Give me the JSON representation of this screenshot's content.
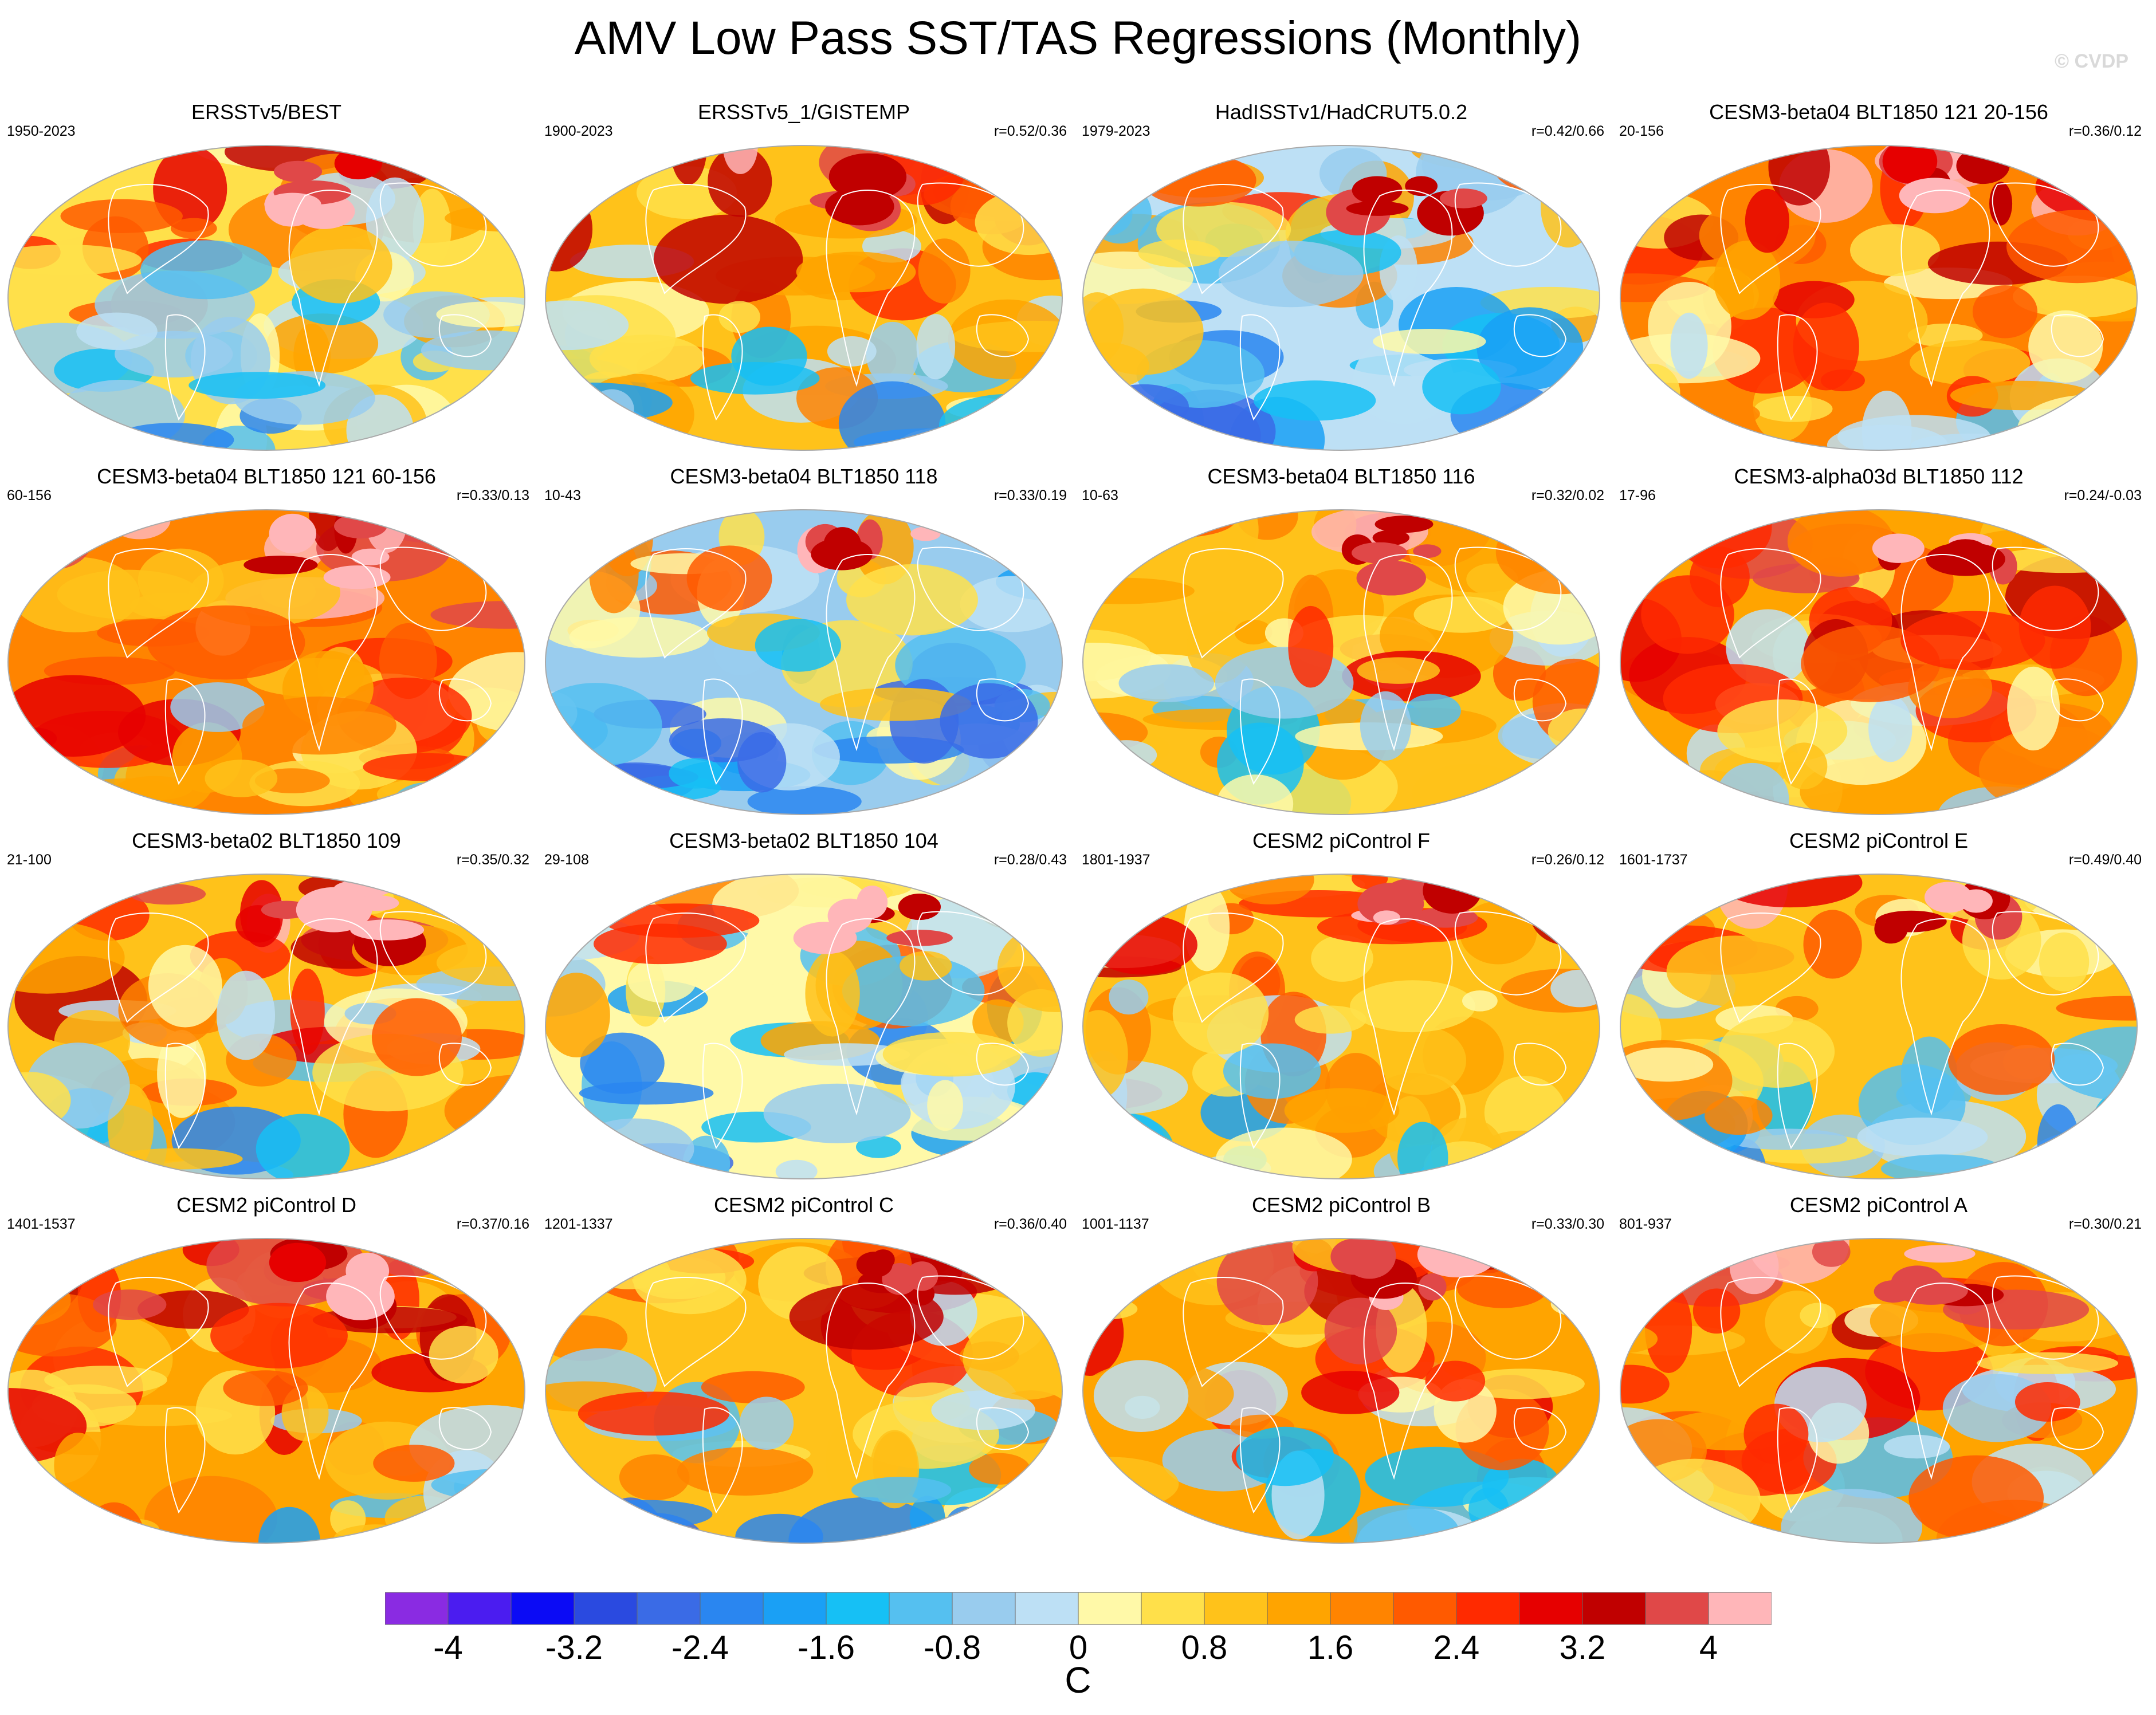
{
  "title": "AMV Low Pass SST/TAS Regressions (Monthly)",
  "copyright": "© CVDP",
  "colorbar": {
    "label": "C",
    "ticks": [
      "-4",
      "-3.2",
      "-2.4",
      "-1.6",
      "-0.8",
      "0",
      "0.8",
      "1.6",
      "2.4",
      "3.2",
      "4"
    ],
    "colors": [
      "#8a2be2",
      "#4b1cf0",
      "#0b0bf5",
      "#2a4ae0",
      "#3a6be6",
      "#2a86f0",
      "#1aa0f5",
      "#16c0f5",
      "#55c0f0",
      "#99ccee",
      "#bde0f5",
      "#fff9a8",
      "#ffe04a",
      "#ffc21a",
      "#ffa400",
      "#ff8400",
      "#ff5a00",
      "#ff2a00",
      "#e60000",
      "#c00000",
      "#e04848",
      "#ffb6b9"
    ]
  },
  "chart_data": {
    "type": "heatmap",
    "title": "AMV Low Pass SST/TAS Regressions (Monthly)",
    "colorbar_label": "C",
    "colorbar_range": [
      -4.4,
      4.4
    ],
    "panels": [
      {
        "title": "ERSSTv5/BEST",
        "years": "1950-2023",
        "corr": "",
        "tone": 0.55,
        "seed": 1
      },
      {
        "title": "ERSSTv5_1/GISTEMP",
        "years": "1900-2023",
        "corr": "r=0.52/0.36",
        "tone": 0.62,
        "seed": 2
      },
      {
        "title": "HadISSTv1/HadCRUT5.0.2",
        "years": "1979-2023",
        "corr": "r=0.42/0.66",
        "tone": 0.48,
        "seed": 3
      },
      {
        "title": "CESM3-beta04 BLT1850 121 20-156",
        "years": "20-156",
        "corr": "r=0.36/0.12",
        "tone": 0.7,
        "seed": 4
      },
      {
        "title": "CESM3-beta04 BLT1850 121 60-156",
        "years": "60-156",
        "corr": "r=0.33/0.13",
        "tone": 0.7,
        "seed": 5
      },
      {
        "title": "CESM3-beta04 BLT1850 118",
        "years": "10-43",
        "corr": "r=0.33/0.19",
        "tone": 0.45,
        "seed": 6
      },
      {
        "title": "CESM3-beta04 BLT1850 116",
        "years": "10-63",
        "corr": "r=0.32/0.02",
        "tone": 0.62,
        "seed": 7
      },
      {
        "title": "CESM3-alpha03d BLT1850 112",
        "years": "17-96",
        "corr": "r=0.24/-0.03",
        "tone": 0.68,
        "seed": 8
      },
      {
        "title": "CESM3-beta02 BLT1850 109",
        "years": "21-100",
        "corr": "r=0.35/0.32",
        "tone": 0.62,
        "seed": 9
      },
      {
        "title": "CESM3-beta02 BLT1850 104",
        "years": "29-108",
        "corr": "r=0.28/0.43",
        "tone": 0.5,
        "seed": 10
      },
      {
        "title": "CESM2 piControl F",
        "years": "1801-1937",
        "corr": "r=0.26/0.12",
        "tone": 0.62,
        "seed": 11
      },
      {
        "title": "CESM2 piControl E",
        "years": "1601-1737",
        "corr": "r=0.49/0.40",
        "tone": 0.6,
        "seed": 12
      },
      {
        "title": "CESM2 piControl D",
        "years": "1401-1537",
        "corr": "r=0.37/0.16",
        "tone": 0.68,
        "seed": 13
      },
      {
        "title": "CESM2 piControl C",
        "years": "1201-1337",
        "corr": "r=0.36/0.40",
        "tone": 0.6,
        "seed": 14
      },
      {
        "title": "CESM2 piControl B",
        "years": "1001-1137",
        "corr": "r=0.33/0.30",
        "tone": 0.64,
        "seed": 15
      },
      {
        "title": "CESM2 piControl A",
        "years": "801-937",
        "corr": "r=0.30/0.21",
        "tone": 0.66,
        "seed": 16
      }
    ]
  }
}
